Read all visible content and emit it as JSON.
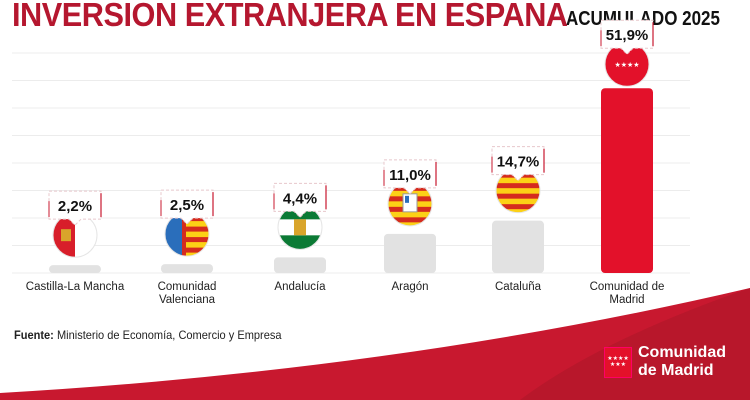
{
  "title": "INVERSION EXTRANJERA EN ESPANA",
  "subtitle": "ACUMULADO 2025",
  "source_label": "Fuente:",
  "source_text": "Ministerio de Economía, Comercio y Empresa",
  "logo": {
    "line1": "Comunidad",
    "line2": "de Madrid"
  },
  "colors": {
    "brand_red": "#b5172f",
    "madrid_bar": "#e3112a",
    "other_bar": "#e2e2e2"
  },
  "chart_data": {
    "type": "bar",
    "categories": [
      "Castilla-La Mancha",
      "Comunidad Valenciana",
      "Andalucía",
      "Aragón",
      "Cataluña",
      "Comunidad de Madrid"
    ],
    "category_lines": [
      [
        "Castilla-La Mancha"
      ],
      [
        "Comunidad",
        "Valenciana"
      ],
      [
        "Andalucía"
      ],
      [
        "Aragón"
      ],
      [
        "Cataluña"
      ],
      [
        "Comunidad de",
        "Madrid"
      ]
    ],
    "values": [
      2.2,
      2.5,
      4.4,
      11.0,
      14.7,
      51.9
    ],
    "data_labels": [
      "2,2%",
      "2,5%",
      "4,4%",
      "11,0%",
      "14,7%",
      "51,9%"
    ],
    "flags": [
      "castilla-la-mancha-flag-icon",
      "valencia-flag-icon",
      "andalucia-flag-icon",
      "aragon-flag-icon",
      "cataluna-flag-icon",
      "madrid-flag-icon"
    ],
    "highlight": "Comunidad de Madrid",
    "grid": true,
    "unit": "%"
  }
}
